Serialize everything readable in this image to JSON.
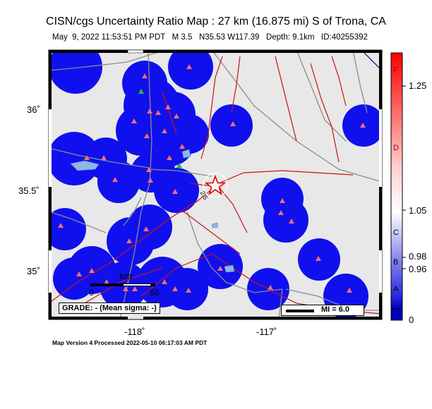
{
  "title": "CISN/cgs Uncertainty Ratio Map : 27 km (16.875 mi) S of Trona, CA",
  "subtitle": {
    "datetime": "May  9, 2022 11:53:51 PM PDT",
    "magnitude": "M 3.5",
    "location": "N35.53 W117.39",
    "depth": "Depth: 9.1km",
    "id": "ID:40255392"
  },
  "map": {
    "lat_labels": [
      "36˚",
      "35.5˚",
      "35˚"
    ],
    "lon_labels": [
      "-118˚",
      "-117˚"
    ],
    "scale_title": "km",
    "scale_labels": [
      "0",
      "50"
    ],
    "grade_label": "GRADE: - (Mean sigma: -)",
    "mi_label": "MI = 6.0",
    "contour_label": "2.5",
    "colors": {
      "land": "#e8e8e8",
      "uncertainty_blob": "#1010ee",
      "fault": "#c81414",
      "road": "#8c8c8c",
      "station": "#f07070",
      "epicenter": "#e00000"
    }
  },
  "colorbar": {
    "letters": [
      "F",
      "D",
      "C",
      "B",
      "A"
    ],
    "right_labels": [
      "1.25",
      "1.05",
      "0.98",
      "0.96"
    ],
    "bottom_label": "0"
  },
  "footer": "Map Version 4 Processed 2022-05-10 06:17:03 AM PDT"
}
